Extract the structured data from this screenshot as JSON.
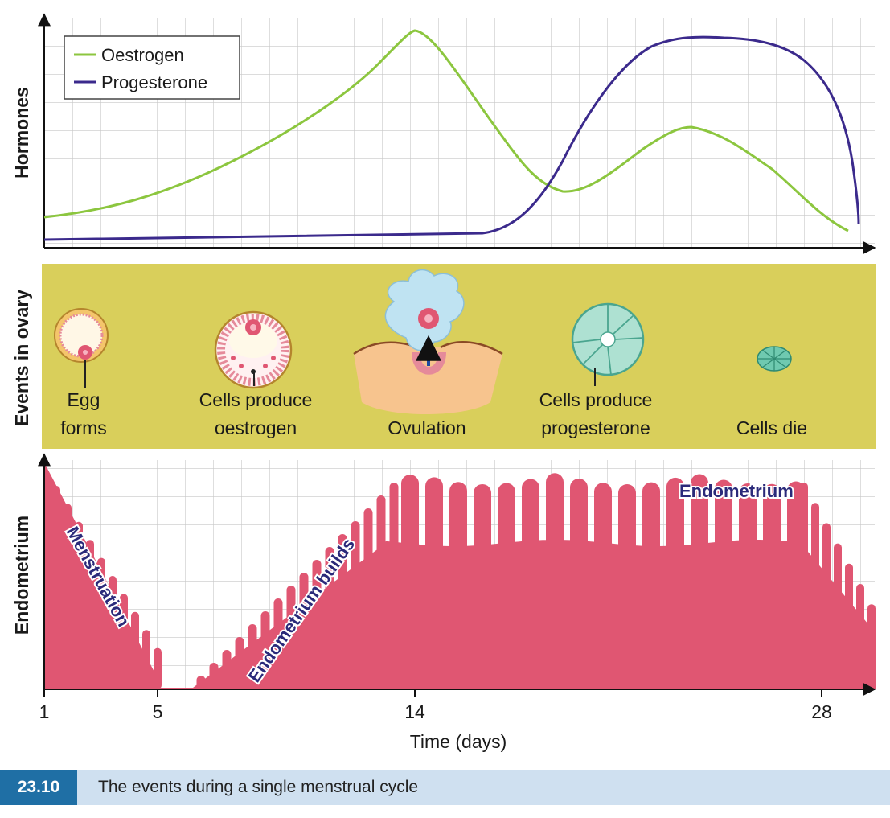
{
  "hormones_panel": {
    "y_label": "Hormones",
    "legend": [
      {
        "label": "Oestrogen",
        "color": "#8cc63f"
      },
      {
        "label": "Progesterone",
        "color": "#3b2a8c"
      }
    ]
  },
  "ovary_panel": {
    "y_label": "Events in ovary",
    "background": "#d9cf5b",
    "stages": [
      {
        "line1": "Egg",
        "line2": "forms"
      },
      {
        "line1": "Cells produce",
        "line2": "oestrogen"
      },
      {
        "line1": "Ovulation",
        "line2": ""
      },
      {
        "line1": "Cells produce",
        "line2": "progesterone"
      },
      {
        "line1": "Cells die",
        "line2": ""
      }
    ]
  },
  "endometrium_panel": {
    "y_label": "Endometrium",
    "fill_color": "#e05672",
    "annotations": {
      "menstruation": "Menstruation",
      "builds": "Endometrium builds",
      "endometrium": "Endometrium"
    }
  },
  "x_axis": {
    "label": "Time (days)",
    "ticks": [
      "1",
      "5",
      "14",
      "28"
    ]
  },
  "caption": {
    "number": "23.10",
    "text": "The events during a single menstrual cycle",
    "number_bg": "#1f6fa5",
    "bar_bg": "#cfe0f0"
  }
}
